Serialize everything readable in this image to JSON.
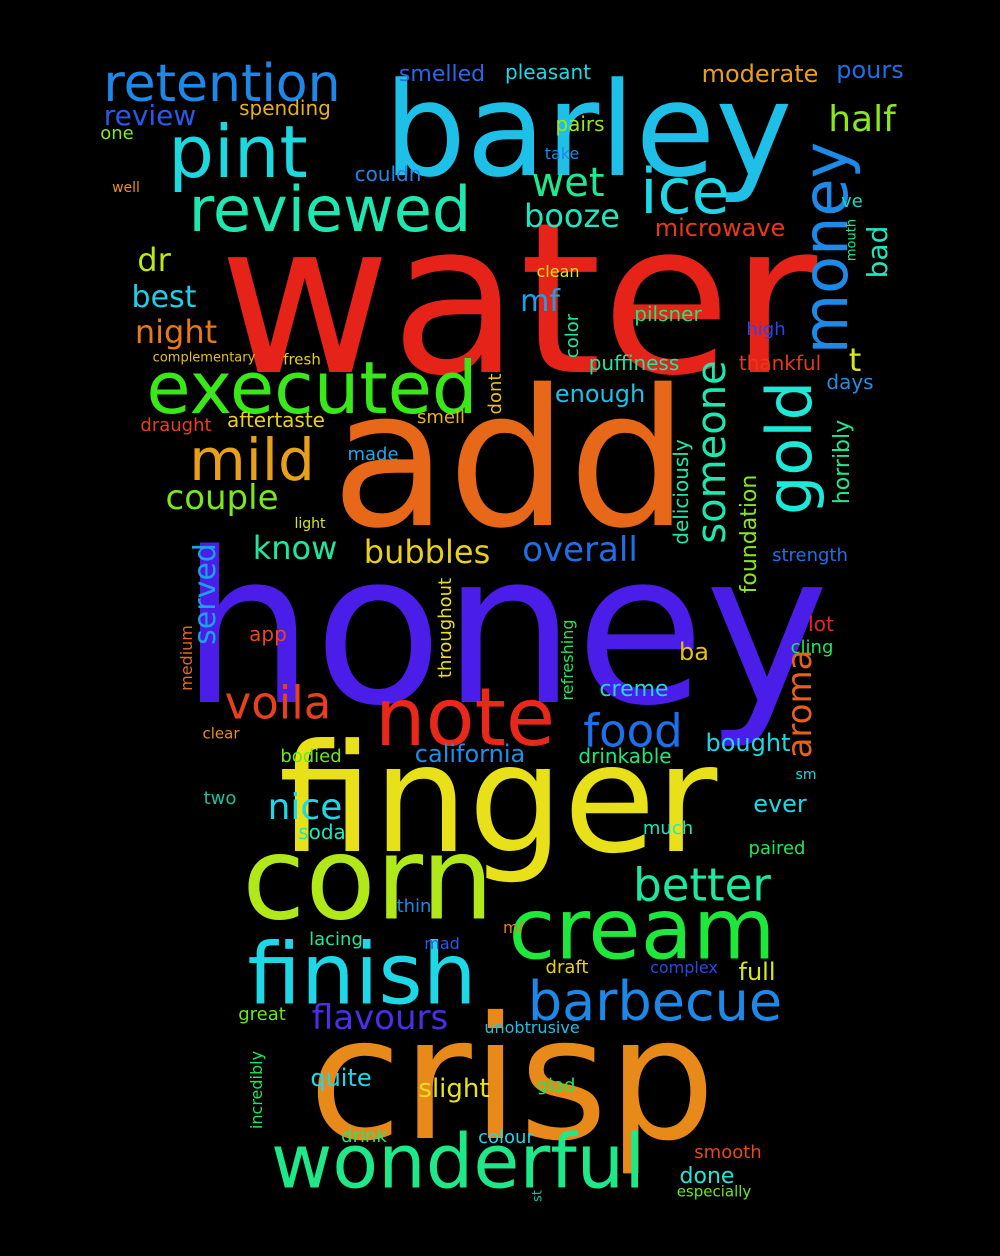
{
  "words": [
    {
      "text": "water",
      "color": "#e62318"
    },
    {
      "text": "add",
      "color": "#e8681a"
    },
    {
      "text": "honey",
      "color": "#4a1ee8"
    },
    {
      "text": "finger",
      "color": "#e8e018"
    },
    {
      "text": "crisp",
      "color": "#e88a1a"
    },
    {
      "text": "barley",
      "color": "#1ec0e8"
    },
    {
      "text": "corn",
      "color": "#b0e81a"
    },
    {
      "text": "cream",
      "color": "#1ee83a"
    },
    {
      "text": "finish",
      "color": "#1ed8e8"
    },
    {
      "text": "wonderful",
      "color": "#1ee888"
    },
    {
      "text": "note",
      "color": "#e8281a"
    },
    {
      "text": "executed",
      "color": "#3ae81a"
    },
    {
      "text": "pint",
      "color": "#1ed8e0"
    },
    {
      "text": "reviewed",
      "color": "#1ee8b0"
    },
    {
      "text": "retention",
      "color": "#1e88e8"
    },
    {
      "text": "ice",
      "color": "#1ed8e8"
    },
    {
      "text": "money",
      "color": "#1e8ae8"
    },
    {
      "text": "gold",
      "color": "#1ee8d8"
    },
    {
      "text": "barbecue",
      "color": "#1e88e8"
    },
    {
      "text": "mild",
      "color": "#e8a01a"
    },
    {
      "text": "voila",
      "color": "#e8401a"
    },
    {
      "text": "food",
      "color": "#1e70e8"
    },
    {
      "text": "better",
      "color": "#1ee8a0"
    },
    {
      "text": "someone",
      "color": "#1ee8b0"
    },
    {
      "text": "wet",
      "color": "#1ee890"
    },
    {
      "text": "aroma",
      "color": "#e8601a"
    },
    {
      "text": "half",
      "color": "#8ae81a"
    },
    {
      "text": "nice",
      "color": "#1ed8e8"
    },
    {
      "text": "flavours",
      "color": "#4a2ee8"
    },
    {
      "text": "overall",
      "color": "#1e70e8"
    },
    {
      "text": "bubbles",
      "color": "#e8d01a"
    },
    {
      "text": "couple",
      "color": "#7ae81a"
    },
    {
      "text": "know",
      "color": "#1ee8a0"
    },
    {
      "text": "booze",
      "color": "#1ee8c0"
    },
    {
      "text": "night",
      "color": "#e8781a"
    },
    {
      "text": "best",
      "color": "#1ed0e8"
    },
    {
      "text": "dr",
      "color": "#b8e81a"
    },
    {
      "text": "mf",
      "color": "#1ea0e8"
    },
    {
      "text": "served",
      "color": "#1ea0e8"
    },
    {
      "text": "review",
      "color": "#2a58e8"
    },
    {
      "text": "moderate",
      "color": "#e8a01a"
    },
    {
      "text": "pours",
      "color": "#1e70e8"
    },
    {
      "text": "smelled",
      "color": "#2a68e8"
    },
    {
      "text": "pleasant",
      "color": "#1ed8e8"
    },
    {
      "text": "spending",
      "color": "#e8b01a"
    },
    {
      "text": "one",
      "color": "#8ae81a"
    },
    {
      "text": "pairs",
      "color": "#9ae81a"
    },
    {
      "text": "take",
      "color": "#1e88e8"
    },
    {
      "text": "couldn",
      "color": "#1e88e8"
    },
    {
      "text": "well",
      "color": "#e8901a"
    },
    {
      "text": "microwave",
      "color": "#e8381a"
    },
    {
      "text": "bad",
      "color": "#1ee8c0"
    },
    {
      "text": "ve",
      "color": "#1ed8c0"
    },
    {
      "text": "mouth",
      "color": "#1ee890"
    },
    {
      "text": "clean",
      "color": "#e8e01a"
    },
    {
      "text": "color",
      "color": "#1ee8a0"
    },
    {
      "text": "pilsner",
      "color": "#1ee878"
    },
    {
      "text": "high",
      "color": "#2a48e8"
    },
    {
      "text": "t",
      "color": "#d8e81a"
    },
    {
      "text": "complementary",
      "color": "#e8c01a"
    },
    {
      "text": "fresh",
      "color": "#e8d01a"
    },
    {
      "text": "puffiness",
      "color": "#1ee8a0"
    },
    {
      "text": "thankful",
      "color": "#e8381a"
    },
    {
      "text": "days",
      "color": "#1e90e8"
    },
    {
      "text": "enough",
      "color": "#1ec0e8"
    },
    {
      "text": "dont",
      "color": "#e8c01a"
    },
    {
      "text": "aftertaste",
      "color": "#e8d01a"
    },
    {
      "text": "smell",
      "color": "#e8b01a"
    },
    {
      "text": "draught",
      "color": "#e8401a"
    },
    {
      "text": "horribly",
      "color": "#1ee890"
    },
    {
      "text": "made",
      "color": "#1ea8e8"
    },
    {
      "text": "deliciously",
      "color": "#1ee8a8"
    },
    {
      "text": "foundation",
      "color": "#8ae81a"
    },
    {
      "text": "light",
      "color": "#d8e81a"
    },
    {
      "text": "strength",
      "color": "#1e70e8"
    },
    {
      "text": "creme",
      "color": "#1ed8e8"
    },
    {
      "text": "throughout",
      "color": "#e8e01a"
    },
    {
      "text": "refreshing",
      "color": "#1ee858"
    },
    {
      "text": "medium",
      "color": "#e8681a"
    },
    {
      "text": "app",
      "color": "#e8481a"
    },
    {
      "text": "lot",
      "color": "#e8281a"
    },
    {
      "text": "cling",
      "color": "#1ee858"
    },
    {
      "text": "ba",
      "color": "#e8c01a"
    },
    {
      "text": "clear",
      "color": "#e8901a"
    },
    {
      "text": "california",
      "color": "#1e90e8"
    },
    {
      "text": "bought",
      "color": "#1ed8e8"
    },
    {
      "text": "bodied",
      "color": "#6ae81a"
    },
    {
      "text": "drinkable",
      "color": "#1ee878"
    },
    {
      "text": "sm",
      "color": "#1ed8e8"
    },
    {
      "text": "two",
      "color": "#1ec0a0"
    },
    {
      "text": "ever",
      "color": "#1ed8e8"
    },
    {
      "text": "soda",
      "color": "#1ee8c0"
    },
    {
      "text": "much",
      "color": "#1ee8c0"
    },
    {
      "text": "paired",
      "color": "#1ee858"
    },
    {
      "text": "thin",
      "color": "#1e88e8"
    },
    {
      "text": "ml",
      "color": "#e8801a"
    },
    {
      "text": "lacing",
      "color": "#1ee8a0"
    },
    {
      "text": "mad",
      "color": "#2a58e8"
    },
    {
      "text": "draft",
      "color": "#e8d01a"
    },
    {
      "text": "complex",
      "color": "#2a48e8"
    },
    {
      "text": "full",
      "color": "#d8e81a"
    },
    {
      "text": "great",
      "color": "#6ae81a"
    },
    {
      "text": "unobtrusive",
      "color": "#1ec0e8"
    },
    {
      "text": "quite",
      "color": "#1ed8e8"
    },
    {
      "text": "slight",
      "color": "#e8e01a"
    },
    {
      "text": "glad",
      "color": "#1ee858"
    },
    {
      "text": "incredibly",
      "color": "#1ee858"
    },
    {
      "text": "drink",
      "color": "#1ee878"
    },
    {
      "text": "colour",
      "color": "#1ed8e8"
    },
    {
      "text": "smooth",
      "color": "#e8481a"
    },
    {
      "text": "done",
      "color": "#1ee8d8"
    },
    {
      "text": "st",
      "color": "#1ec0a0"
    },
    {
      "text": "especially",
      "color": "#6ae81a"
    }
  ]
}
